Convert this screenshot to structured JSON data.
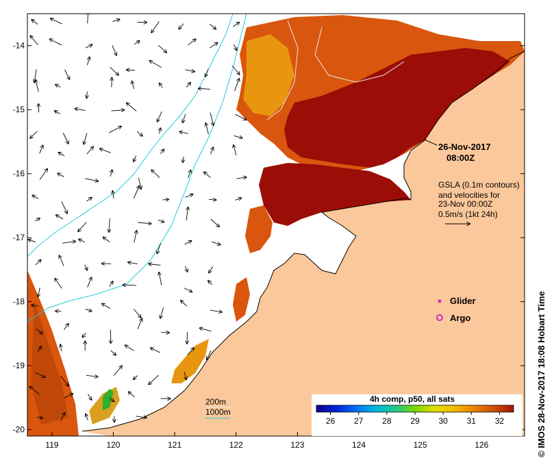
{
  "map": {
    "lon_range": [
      118.6,
      126.7
    ],
    "lat_range": [
      -20.1,
      -13.5
    ],
    "x_ticks": [
      "119",
      "120",
      "121",
      "122",
      "123",
      "124",
      "125",
      "126"
    ],
    "y_ticks": [
      "-14",
      "-15",
      "-16",
      "-17",
      "-18",
      "-19",
      "-20"
    ],
    "colors": {
      "land": "#fbc89b",
      "coast": "#000000",
      "contour_200m": "#cfcfcf",
      "contour_1000m": "#22c8d8",
      "sst_hot": "#9b0d06",
      "sst_warm": "#d9560e",
      "sst_mid": "#e8960f"
    }
  },
  "annotations": {
    "date": "26-Nov-2017",
    "time": "08:00Z",
    "gsla_line1": "GSLA (0.1m contours)",
    "gsla_line2": "and velocities for",
    "gsla_line3": "23-Nov 00:00Z",
    "gsla_line4": "0.5m/s (1kt 24h)",
    "glider_label": "Glider",
    "argo_label": "Argo",
    "glider_color": "#d02ad0",
    "argo_color": "#d02ad0"
  },
  "bathy_legend": {
    "line1": "200m",
    "line2": "1000m"
  },
  "colorbar": {
    "title": "4h comp, p50, all sats",
    "ticks": [
      "26",
      "27",
      "28",
      "29",
      "30",
      "31",
      "32"
    ],
    "colors": [
      "#10008a",
      "#0022d8",
      "#0072f0",
      "#00b8e0",
      "#20c890",
      "#7ad800",
      "#e0e000",
      "#f6b800",
      "#e88400",
      "#d04e08",
      "#a41408"
    ]
  },
  "credit": "© IMOS 28-Nov-2017 18:08 Hobart Time"
}
